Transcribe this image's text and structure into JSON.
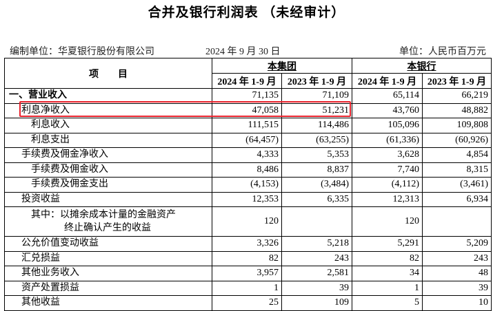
{
  "title": "合并及银行利润表 （未经审计）",
  "info": {
    "preparer": "编制单位：华夏银行股份有限公司",
    "date": "2024 年 9 月 30 日",
    "unit": "单位：人民币百万元"
  },
  "header": {
    "item": "项　　目",
    "group": "本集团",
    "bank": "本银行",
    "periods": [
      "2024 年 1-9 月",
      "2023 年 1-9 月",
      "2024 年 1-9 月",
      "2023 年 1-9 月"
    ]
  },
  "highlight_color": "#e8202a",
  "rows": [
    {
      "label": "一、营业收入",
      "values": [
        "71,135",
        "71,109",
        "65,114",
        "66,219"
      ]
    },
    {
      "label": "利息净收入",
      "values": [
        "47,058",
        "51,231",
        "43,760",
        "48,882"
      ]
    },
    {
      "label": "利息收入",
      "values": [
        "111,515",
        "114,486",
        "105,096",
        "109,808"
      ]
    },
    {
      "label": "利息支出",
      "values": [
        "(64,457)",
        "(63,255)",
        "(61,336)",
        "(60,926)"
      ]
    },
    {
      "label": "手续费及佣金净收入",
      "values": [
        "4,333",
        "5,353",
        "3,628",
        "4,854"
      ]
    },
    {
      "label": "手续费及佣金收入",
      "values": [
        "8,486",
        "8,837",
        "7,740",
        "8,315"
      ]
    },
    {
      "label": "手续费及佣金支出",
      "values": [
        "(4,153)",
        "(3,484)",
        "(4,112)",
        "(3,461)"
      ]
    },
    {
      "label": "投资收益",
      "values": [
        "12,353",
        "6,335",
        "12,313",
        "6,934"
      ]
    },
    {
      "label": "其中：以摊余成本计量的金融资产",
      "label2": "终止确认产生的收益",
      "values": [
        "120",
        "",
        "120",
        ""
      ]
    },
    {
      "label": "公允价值变动收益",
      "values": [
        "3,326",
        "5,218",
        "5,291",
        "5,209"
      ]
    },
    {
      "label": "汇兑损益",
      "values": [
        "82",
        "243",
        "82",
        "243"
      ]
    },
    {
      "label": "其他业务收入",
      "values": [
        "3,957",
        "2,581",
        "34",
        "48"
      ]
    },
    {
      "label": "资产处置损益",
      "values": [
        "1",
        "39",
        "1",
        "39"
      ]
    },
    {
      "label": "其他收益",
      "values": [
        "25",
        "109",
        "5",
        "10"
      ]
    }
  ]
}
